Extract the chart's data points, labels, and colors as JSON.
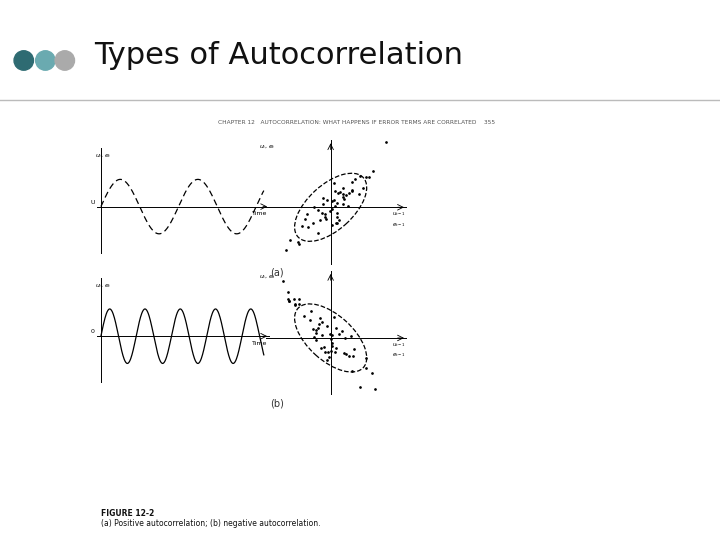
{
  "title": "Types of Autocorrelation",
  "title_fontsize": 22,
  "title_color": "#111111",
  "background_color": "#ffffff",
  "dot_colors": [
    "#2e6b72",
    "#6aaab0",
    "#aaaaaa"
  ],
  "bar_color": "#111111",
  "image_bg": "#dedad4",
  "header_text": "CHAPTER 12   AUTOCORRELATION: WHAT HAPPENS IF ERROR TERMS ARE CORRELATED    355",
  "figure_caption_line1": "FIGURE 12-2",
  "figure_caption_line2": "(a) Positive autocorrelation; (b) negative autocorrelation.",
  "subplot_a_label": "(a)",
  "subplot_b_label": "(b)"
}
